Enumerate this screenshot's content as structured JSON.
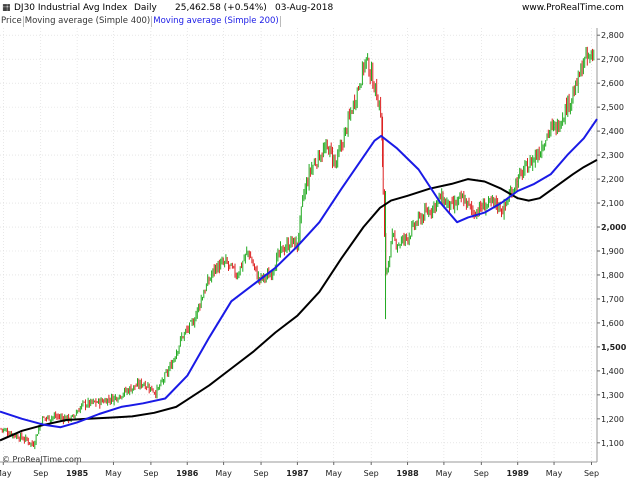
{
  "header": {
    "title": "DJ30 Industrial Avg Index",
    "period": "Daily",
    "last_value": "25,462.58 (+0.54%)",
    "date": "03-Aug-2018",
    "site": "www.ProRealTime.com"
  },
  "legend": {
    "items": [
      "Price",
      "Moving average (Simple 400)",
      "Moving average (Simple 200)"
    ]
  },
  "credit": "© ProRealTime.com",
  "colors": {
    "up_candle": "#22aa22",
    "down_candle": "#dd2222",
    "ma400": "#000000",
    "ma200": "#1a1ae6",
    "grid": "#d8d8d8"
  },
  "chart_data": {
    "type": "line",
    "ylim": [
      1020,
      2830
    ],
    "y_ticks": [
      1100,
      1200,
      1300,
      1400,
      1500,
      1600,
      1700,
      1800,
      1900,
      2000,
      2100,
      2200,
      2300,
      2400,
      2500,
      2600,
      2700,
      2800
    ],
    "y_tick_labels": [
      "1,100",
      "1,200",
      "1,300",
      "1,400",
      "1,500",
      "1,600",
      "1,700",
      "1,800",
      "1,900",
      "2,000",
      "2,100",
      "2,200",
      "2,300",
      "2,400",
      "2,500",
      "2,600",
      "2,700",
      "2,800"
    ],
    "y_bold_ticks": [
      1500,
      2000
    ],
    "x_range": [
      1984.3,
      1989.72
    ],
    "x_ticks": [
      {
        "label": "May",
        "x": 1984.33,
        "bold": false
      },
      {
        "label": "Sep",
        "x": 1984.67,
        "bold": false
      },
      {
        "label": "1985",
        "x": 1985.0,
        "bold": true
      },
      {
        "label": "May",
        "x": 1985.33,
        "bold": false
      },
      {
        "label": "Sep",
        "x": 1985.67,
        "bold": false
      },
      {
        "label": "1986",
        "x": 1986.0,
        "bold": true
      },
      {
        "label": "May",
        "x": 1986.33,
        "bold": false
      },
      {
        "label": "Sep",
        "x": 1986.67,
        "bold": false
      },
      {
        "label": "1987",
        "x": 1987.0,
        "bold": true
      },
      {
        "label": "May",
        "x": 1987.33,
        "bold": false
      },
      {
        "label": "Sep",
        "x": 1987.67,
        "bold": false
      },
      {
        "label": "1988",
        "x": 1988.0,
        "bold": true
      },
      {
        "label": "May",
        "x": 1988.33,
        "bold": false
      },
      {
        "label": "Sep",
        "x": 1988.67,
        "bold": false
      },
      {
        "label": "1989",
        "x": 1989.0,
        "bold": true
      },
      {
        "label": "May",
        "x": 1989.33,
        "bold": false
      },
      {
        "label": "Sep",
        "x": 1989.67,
        "bold": false
      }
    ],
    "series": [
      {
        "name": "Price",
        "values": [
          [
            1984.3,
            1160
          ],
          [
            1984.45,
            1130
          ],
          [
            1984.55,
            1110
          ],
          [
            1984.6,
            1090
          ],
          [
            1984.68,
            1200
          ],
          [
            1984.8,
            1210
          ],
          [
            1984.95,
            1200
          ],
          [
            1985.05,
            1260
          ],
          [
            1985.2,
            1270
          ],
          [
            1985.35,
            1290
          ],
          [
            1985.5,
            1330
          ],
          [
            1985.6,
            1350
          ],
          [
            1985.72,
            1310
          ],
          [
            1985.85,
            1420
          ],
          [
            1985.95,
            1540
          ],
          [
            1986.05,
            1600
          ],
          [
            1986.15,
            1730
          ],
          [
            1986.25,
            1830
          ],
          [
            1986.35,
            1850
          ],
          [
            1986.45,
            1800
          ],
          [
            1986.55,
            1900
          ],
          [
            1986.65,
            1780
          ],
          [
            1986.75,
            1800
          ],
          [
            1986.85,
            1900
          ],
          [
            1986.95,
            1940
          ],
          [
            1987.0,
            1920
          ],
          [
            1987.05,
            2120
          ],
          [
            1987.12,
            2240
          ],
          [
            1987.2,
            2300
          ],
          [
            1987.28,
            2330
          ],
          [
            1987.35,
            2260
          ],
          [
            1987.45,
            2420
          ],
          [
            1987.55,
            2580
          ],
          [
            1987.62,
            2700
          ],
          [
            1987.68,
            2620
          ],
          [
            1987.72,
            2550
          ],
          [
            1987.76,
            2480
          ],
          [
            1987.8,
            1790
          ],
          [
            1987.86,
            1950
          ],
          [
            1987.92,
            1930
          ],
          [
            1988.0,
            1960
          ],
          [
            1988.1,
            2030
          ],
          [
            1988.2,
            2070
          ],
          [
            1988.3,
            2120
          ],
          [
            1988.4,
            2080
          ],
          [
            1988.5,
            2120
          ],
          [
            1988.6,
            2060
          ],
          [
            1988.7,
            2090
          ],
          [
            1988.8,
            2100
          ],
          [
            1988.87,
            2070
          ],
          [
            1988.95,
            2160
          ],
          [
            1989.05,
            2230
          ],
          [
            1989.12,
            2270
          ],
          [
            1989.2,
            2320
          ],
          [
            1989.28,
            2400
          ],
          [
            1989.36,
            2420
          ],
          [
            1989.44,
            2500
          ],
          [
            1989.52,
            2570
          ],
          [
            1989.6,
            2690
          ],
          [
            1989.66,
            2710
          ],
          [
            1989.72,
            2720
          ]
        ]
      },
      {
        "name": "Moving average (Simple 400)",
        "values": [
          [
            1984.3,
            1110
          ],
          [
            1984.5,
            1150
          ],
          [
            1984.7,
            1175
          ],
          [
            1984.9,
            1195
          ],
          [
            1985.1,
            1200
          ],
          [
            1985.3,
            1205
          ],
          [
            1985.5,
            1210
          ],
          [
            1985.7,
            1225
          ],
          [
            1985.9,
            1250
          ],
          [
            1986.0,
            1280
          ],
          [
            1986.2,
            1340
          ],
          [
            1986.4,
            1410
          ],
          [
            1986.6,
            1480
          ],
          [
            1986.8,
            1560
          ],
          [
            1987.0,
            1630
          ],
          [
            1987.2,
            1730
          ],
          [
            1987.4,
            1870
          ],
          [
            1987.6,
            2000
          ],
          [
            1987.75,
            2080
          ],
          [
            1987.85,
            2110
          ],
          [
            1988.0,
            2130
          ],
          [
            1988.2,
            2160
          ],
          [
            1988.4,
            2180
          ],
          [
            1988.55,
            2200
          ],
          [
            1988.7,
            2190
          ],
          [
            1988.85,
            2160
          ],
          [
            1989.0,
            2120
          ],
          [
            1989.1,
            2110
          ],
          [
            1989.2,
            2120
          ],
          [
            1989.35,
            2170
          ],
          [
            1989.5,
            2220
          ],
          [
            1989.6,
            2250
          ],
          [
            1989.72,
            2280
          ]
        ]
      },
      {
        "name": "Moving average (Simple 200)",
        "values": [
          [
            1984.3,
            1230
          ],
          [
            1984.5,
            1200
          ],
          [
            1984.7,
            1175
          ],
          [
            1984.85,
            1165
          ],
          [
            1985.0,
            1185
          ],
          [
            1985.2,
            1220
          ],
          [
            1985.4,
            1250
          ],
          [
            1985.6,
            1265
          ],
          [
            1985.8,
            1285
          ],
          [
            1986.0,
            1380
          ],
          [
            1986.2,
            1540
          ],
          [
            1986.4,
            1690
          ],
          [
            1986.6,
            1760
          ],
          [
            1986.8,
            1830
          ],
          [
            1987.0,
            1920
          ],
          [
            1987.2,
            2020
          ],
          [
            1987.4,
            2160
          ],
          [
            1987.55,
            2260
          ],
          [
            1987.7,
            2360
          ],
          [
            1987.76,
            2380
          ],
          [
            1987.9,
            2330
          ],
          [
            1988.1,
            2240
          ],
          [
            1988.3,
            2100
          ],
          [
            1988.45,
            2020
          ],
          [
            1988.55,
            2040
          ],
          [
            1988.7,
            2060
          ],
          [
            1988.85,
            2100
          ],
          [
            1989.0,
            2150
          ],
          [
            1989.15,
            2180
          ],
          [
            1989.3,
            2220
          ],
          [
            1989.45,
            2300
          ],
          [
            1989.6,
            2370
          ],
          [
            1989.72,
            2450
          ]
        ]
      }
    ]
  }
}
